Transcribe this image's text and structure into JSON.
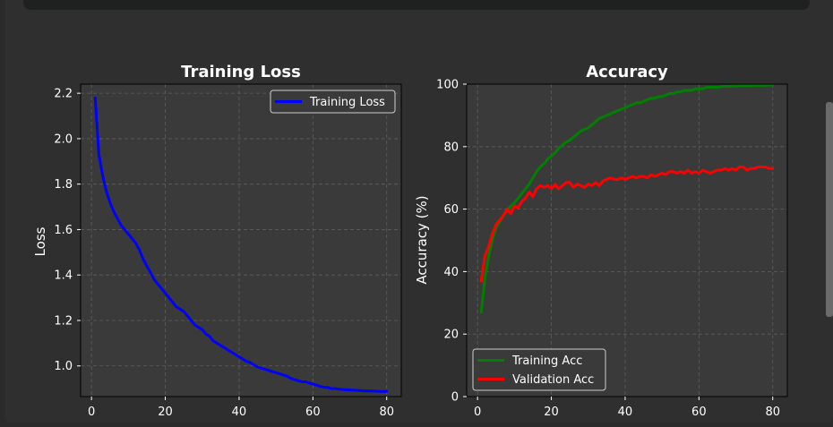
{
  "chart_data": [
    {
      "type": "line",
      "title": "Training Loss",
      "xlabel": "",
      "ylabel": "Loss",
      "xlim": [
        -2.95,
        83.95
      ],
      "ylim": [
        0.865,
        2.24
      ],
      "xticks": [
        0,
        20,
        40,
        60,
        80
      ],
      "yticks": [
        1.0,
        1.2,
        1.4,
        1.6,
        1.8,
        2.0,
        2.2
      ],
      "ytick_labels": [
        "1.0",
        "1.2",
        "1.4",
        "1.6",
        "1.8",
        "2.0",
        "2.2"
      ],
      "grid": true,
      "legend": "top-right",
      "series": [
        {
          "name": "Training Loss",
          "color": "#0000ff",
          "x": [
            1,
            2,
            3,
            4,
            5,
            6,
            7,
            8,
            9,
            10,
            11,
            12,
            13,
            14,
            15,
            16,
            17,
            18,
            19,
            20,
            21,
            22,
            23,
            24,
            25,
            26,
            27,
            28,
            29,
            30,
            31,
            32,
            33,
            34,
            35,
            36,
            37,
            38,
            39,
            40,
            41,
            42,
            43,
            44,
            45,
            46,
            47,
            48,
            49,
            50,
            51,
            52,
            53,
            54,
            55,
            56,
            57,
            58,
            59,
            60,
            61,
            62,
            63,
            64,
            65,
            66,
            67,
            68,
            69,
            70,
            71,
            72,
            73,
            74,
            75,
            76,
            77,
            78,
            79,
            80
          ],
          "values": [
            2.18,
            1.93,
            1.84,
            1.77,
            1.72,
            1.68,
            1.65,
            1.62,
            1.6,
            1.58,
            1.56,
            1.54,
            1.51,
            1.47,
            1.44,
            1.41,
            1.38,
            1.36,
            1.34,
            1.32,
            1.3,
            1.28,
            1.26,
            1.25,
            1.24,
            1.22,
            1.2,
            1.18,
            1.17,
            1.16,
            1.14,
            1.13,
            1.11,
            1.1,
            1.09,
            1.08,
            1.07,
            1.06,
            1.05,
            1.04,
            1.03,
            1.02,
            1.015,
            1.005,
            0.995,
            0.99,
            0.985,
            0.98,
            0.975,
            0.97,
            0.965,
            0.96,
            0.955,
            0.945,
            0.94,
            0.935,
            0.93,
            0.93,
            0.925,
            0.92,
            0.915,
            0.91,
            0.905,
            0.905,
            0.9,
            0.9,
            0.898,
            0.896,
            0.895,
            0.894,
            0.893,
            0.892,
            0.891,
            0.89,
            0.89,
            0.889,
            0.889,
            0.888,
            0.888,
            0.888
          ]
        }
      ]
    },
    {
      "type": "line",
      "title": "Accuracy",
      "xlabel": "",
      "ylabel": "Accuracy (%)",
      "xlim": [
        -2.95,
        83.95
      ],
      "ylim": [
        0,
        100
      ],
      "xticks": [
        0,
        20,
        40,
        60,
        80
      ],
      "yticks": [
        0,
        20,
        40,
        60,
        80,
        100
      ],
      "ytick_labels": [
        "0",
        "20",
        "40",
        "60",
        "80",
        "100"
      ],
      "grid": true,
      "legend": "bottom-left",
      "series": [
        {
          "name": "Training Acc",
          "color": "#008000",
          "x": [
            1,
            2,
            3,
            4,
            5,
            6,
            7,
            8,
            9,
            10,
            11,
            12,
            13,
            14,
            15,
            16,
            17,
            18,
            19,
            20,
            21,
            22,
            23,
            24,
            25,
            26,
            27,
            28,
            29,
            30,
            31,
            32,
            33,
            34,
            35,
            36,
            37,
            38,
            39,
            40,
            41,
            42,
            43,
            44,
            45,
            46,
            47,
            48,
            49,
            50,
            51,
            52,
            53,
            54,
            55,
            56,
            57,
            58,
            59,
            60,
            61,
            62,
            63,
            64,
            65,
            66,
            67,
            68,
            69,
            70,
            71,
            72,
            73,
            74,
            75,
            76,
            77,
            78,
            79,
            80
          ],
          "values": [
            27,
            38,
            45,
            50,
            54,
            56,
            58,
            59.5,
            61,
            62,
            63.5,
            65,
            66.5,
            68,
            70,
            72,
            73.5,
            74.5,
            76,
            77,
            78,
            79.5,
            80.5,
            81.5,
            82,
            83,
            84,
            85,
            85.5,
            86,
            87,
            88,
            89,
            89.5,
            90,
            90.5,
            91,
            91.5,
            92,
            92.5,
            93,
            93.5,
            94,
            94,
            94.5,
            95,
            95.5,
            95.5,
            96,
            96,
            96.5,
            97,
            97,
            97.5,
            97.5,
            98,
            98,
            98,
            98.5,
            98.5,
            98.5,
            99,
            99,
            99,
            99,
            99.2,
            99.3,
            99.3,
            99.4,
            99.4,
            99.5,
            99.5,
            99.5,
            99.5,
            99.6,
            99.6,
            99.6,
            99.6,
            99.7,
            99.7
          ]
        },
        {
          "name": "Validation Acc",
          "color": "#ff0000",
          "x": [
            1,
            2,
            3,
            4,
            5,
            6,
            7,
            8,
            9,
            10,
            11,
            12,
            13,
            14,
            15,
            16,
            17,
            18,
            19,
            20,
            21,
            22,
            23,
            24,
            25,
            26,
            27,
            28,
            29,
            30,
            31,
            32,
            33,
            34,
            35,
            36,
            37,
            38,
            39,
            40,
            41,
            42,
            43,
            44,
            45,
            46,
            47,
            48,
            49,
            50,
            51,
            52,
            53,
            54,
            55,
            56,
            57,
            58,
            59,
            60,
            61,
            62,
            63,
            64,
            65,
            66,
            67,
            68,
            69,
            70,
            71,
            72,
            73,
            74,
            75,
            76,
            77,
            78,
            79,
            80
          ],
          "values": [
            37,
            45,
            48,
            52,
            55,
            56.5,
            58,
            60,
            58.5,
            61,
            60.5,
            62.5,
            63.5,
            65.5,
            64,
            66.5,
            67.5,
            67,
            67.5,
            66.5,
            68,
            66.5,
            67.5,
            68.5,
            68.5,
            67,
            68,
            67.5,
            67,
            68,
            67.5,
            68.5,
            67.5,
            69,
            69.5,
            70,
            69.5,
            69.5,
            70,
            69.5,
            70,
            70.5,
            70,
            70.5,
            70.5,
            70,
            71,
            70.5,
            71,
            71.5,
            71,
            72,
            72,
            71.5,
            72,
            71.5,
            72.5,
            71.5,
            72,
            71.5,
            72.5,
            72,
            71.5,
            72,
            72.5,
            72.5,
            73,
            72.5,
            73,
            72.5,
            73.5,
            73.5,
            72.5,
            73,
            73,
            73.5,
            73.5,
            73.5,
            73,
            73
          ]
        }
      ]
    }
  ]
}
